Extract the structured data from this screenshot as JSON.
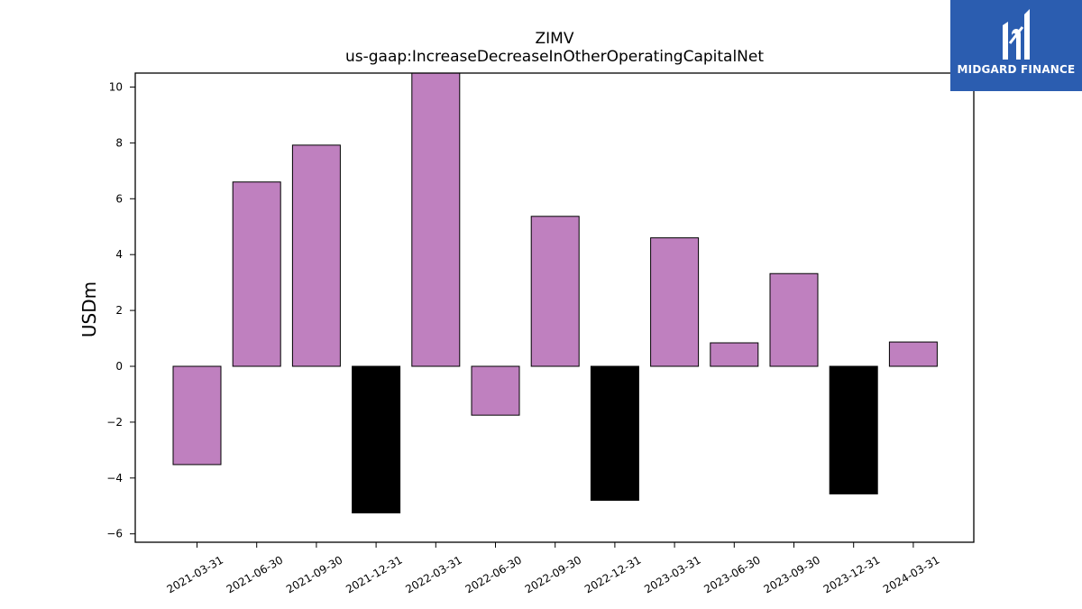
{
  "chart_data": {
    "type": "bar",
    "title": "ZIMV",
    "subtitle": "us-gaap:IncreaseDecreaseInOtherOperatingCapitalNet",
    "xlabel": "",
    "ylabel": "USDm",
    "ylim": [
      -6.3,
      10.5
    ],
    "yticks": [
      -6,
      -4,
      -2,
      0,
      2,
      4,
      6,
      8,
      10
    ],
    "ytick_labels": [
      "−6",
      "−4",
      "−2",
      "0",
      "2",
      "4",
      "6",
      "8",
      "10"
    ],
    "grid": false,
    "categories": [
      "2021-03-31",
      "2021-06-30",
      "2021-09-30",
      "2021-12-31",
      "2022-03-31",
      "2022-06-30",
      "2022-09-30",
      "2022-12-31",
      "2023-03-31",
      "2023-06-30",
      "2023-09-30",
      "2023-12-31",
      "2024-03-31"
    ],
    "values": [
      -3.52,
      6.6,
      7.92,
      -5.25,
      10.5,
      -1.75,
      5.37,
      -4.8,
      4.6,
      0.84,
      3.32,
      -4.57,
      0.87
    ],
    "bar_colors": [
      "#bf80bf",
      "#bf80bf",
      "#bf80bf",
      "#000000",
      "#bf80bf",
      "#bf80bf",
      "#bf80bf",
      "#000000",
      "#bf80bf",
      "#bf80bf",
      "#bf80bf",
      "#000000",
      "#bf80bf"
    ]
  },
  "logo": {
    "text": "MIDGARD FINANCE",
    "color": "#2b5db0"
  }
}
